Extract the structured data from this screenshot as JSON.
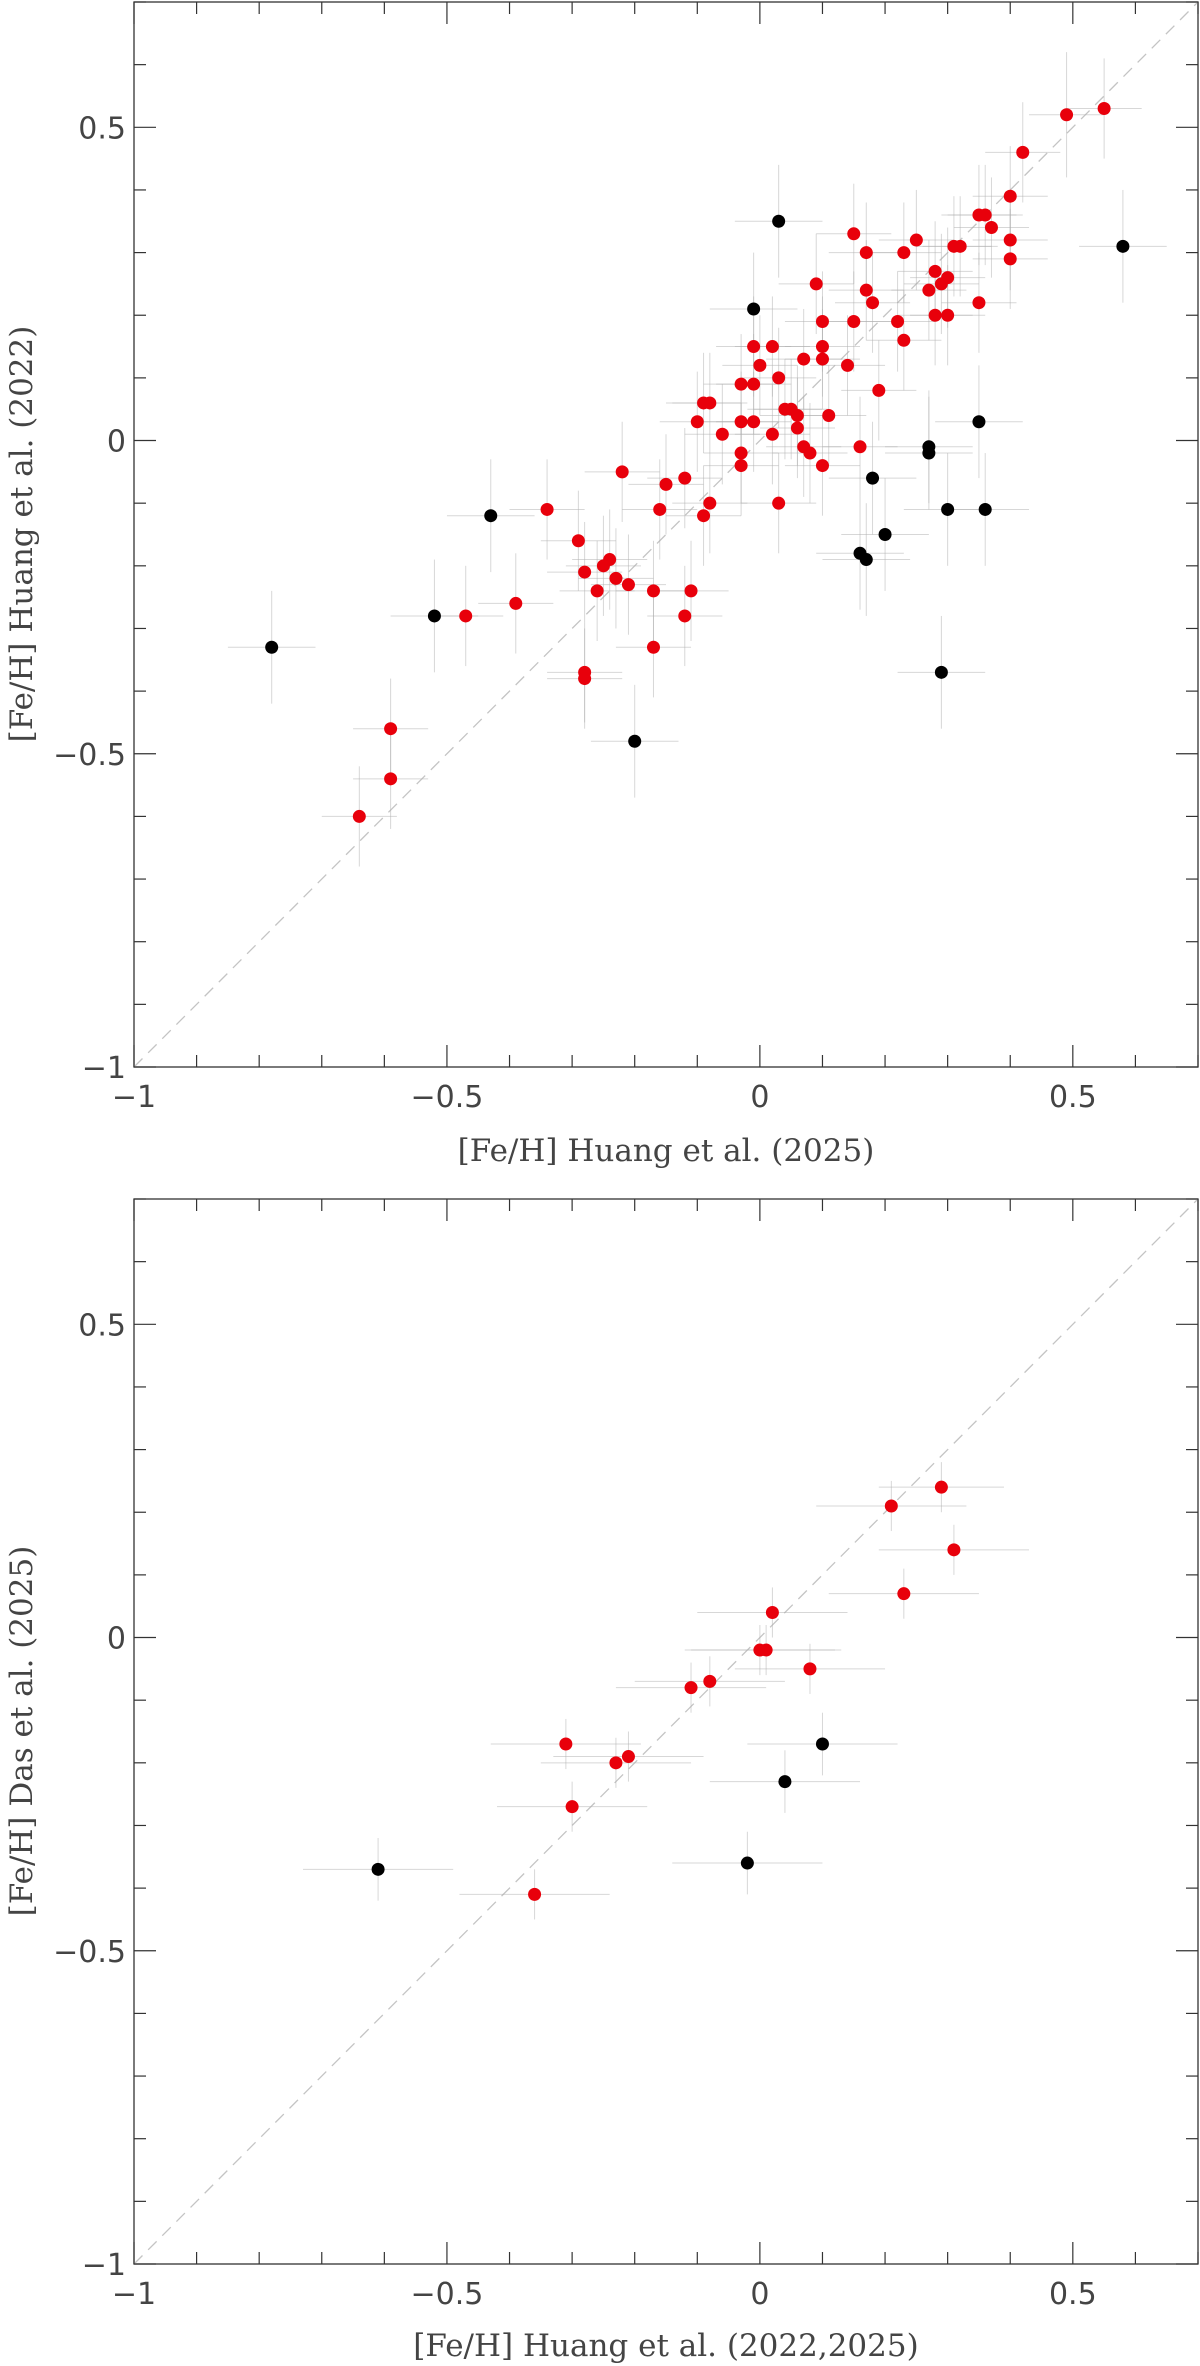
{
  "chart_data": [
    {
      "type": "scatter",
      "xlabel": "[Fe/H] Huang et al. (2025)",
      "ylabel": "[Fe/H] Huang et al. (2022)",
      "xlim": [
        -1,
        0.7
      ],
      "ylim": [
        -1,
        0.7
      ],
      "xticks": [
        -1,
        -0.5,
        0,
        0.5
      ],
      "xtick_labels": [
        "−1",
        "−0.5",
        "0",
        "0.5"
      ],
      "yticks": [
        -1,
        -0.5,
        0,
        0.5
      ],
      "ytick_labels": [
        "−1",
        "−0.5",
        "0",
        "0.5"
      ],
      "identity_line": true,
      "grid": false,
      "series": [
        {
          "color": "#e8000b",
          "points": [
            {
              "x": 0.55,
              "y": 0.53,
              "xerr": 0.06,
              "yerr": 0.08
            },
            {
              "x": 0.49,
              "y": 0.52,
              "xerr": 0.06,
              "yerr": 0.1
            },
            {
              "x": 0.42,
              "y": 0.46,
              "xerr": 0.06,
              "yerr": 0.08
            },
            {
              "x": 0.4,
              "y": 0.39,
              "xerr": 0.06,
              "yerr": 0.08
            },
            {
              "x": 0.36,
              "y": 0.36,
              "xerr": 0.06,
              "yerr": 0.08
            },
            {
              "x": 0.35,
              "y": 0.36,
              "xerr": 0.06,
              "yerr": 0.08
            },
            {
              "x": 0.37,
              "y": 0.34,
              "xerr": 0.06,
              "yerr": 0.08
            },
            {
              "x": 0.4,
              "y": 0.32,
              "xerr": 0.06,
              "yerr": 0.08
            },
            {
              "x": 0.4,
              "y": 0.29,
              "xerr": 0.06,
              "yerr": 0.08
            },
            {
              "x": 0.35,
              "y": 0.22,
              "xerr": 0.06,
              "yerr": 0.08
            },
            {
              "x": 0.32,
              "y": 0.31,
              "xerr": 0.06,
              "yerr": 0.08
            },
            {
              "x": 0.31,
              "y": 0.31,
              "xerr": 0.06,
              "yerr": 0.08
            },
            {
              "x": 0.3,
              "y": 0.26,
              "xerr": 0.06,
              "yerr": 0.08
            },
            {
              "x": 0.29,
              "y": 0.25,
              "xerr": 0.06,
              "yerr": 0.08
            },
            {
              "x": 0.28,
              "y": 0.27,
              "xerr": 0.06,
              "yerr": 0.08
            },
            {
              "x": 0.27,
              "y": 0.24,
              "xerr": 0.06,
              "yerr": 0.08
            },
            {
              "x": 0.25,
              "y": 0.32,
              "xerr": 0.06,
              "yerr": 0.08
            },
            {
              "x": 0.23,
              "y": 0.3,
              "xerr": 0.06,
              "yerr": 0.08
            },
            {
              "x": 0.3,
              "y": 0.2,
              "xerr": 0.06,
              "yerr": 0.08
            },
            {
              "x": 0.28,
              "y": 0.2,
              "xerr": 0.06,
              "yerr": 0.08
            },
            {
              "x": 0.22,
              "y": 0.19,
              "xerr": 0.06,
              "yerr": 0.08
            },
            {
              "x": 0.23,
              "y": 0.16,
              "xerr": 0.06,
              "yerr": 0.08
            },
            {
              "x": 0.15,
              "y": 0.33,
              "xerr": 0.06,
              "yerr": 0.08
            },
            {
              "x": 0.17,
              "y": 0.3,
              "xerr": 0.06,
              "yerr": 0.08
            },
            {
              "x": 0.17,
              "y": 0.24,
              "xerr": 0.06,
              "yerr": 0.08
            },
            {
              "x": 0.18,
              "y": 0.22,
              "xerr": 0.06,
              "yerr": 0.08
            },
            {
              "x": 0.09,
              "y": 0.25,
              "xerr": 0.06,
              "yerr": 0.08
            },
            {
              "x": 0.15,
              "y": 0.19,
              "xerr": 0.06,
              "yerr": 0.08
            },
            {
              "x": 0.1,
              "y": 0.19,
              "xerr": 0.06,
              "yerr": 0.08
            },
            {
              "x": 0.1,
              "y": 0.15,
              "xerr": 0.06,
              "yerr": 0.08
            },
            {
              "x": 0.1,
              "y": 0.13,
              "xerr": 0.06,
              "yerr": 0.08
            },
            {
              "x": 0.14,
              "y": 0.12,
              "xerr": 0.06,
              "yerr": 0.08
            },
            {
              "x": 0.07,
              "y": 0.13,
              "xerr": 0.06,
              "yerr": 0.08
            },
            {
              "x": 0.02,
              "y": 0.15,
              "xerr": 0.06,
              "yerr": 0.08
            },
            {
              "x": -0.01,
              "y": 0.15,
              "xerr": 0.06,
              "yerr": 0.08
            },
            {
              "x": 0.0,
              "y": 0.12,
              "xerr": 0.06,
              "yerr": 0.08
            },
            {
              "x": 0.03,
              "y": 0.1,
              "xerr": 0.06,
              "yerr": 0.08
            },
            {
              "x": -0.01,
              "y": 0.09,
              "xerr": 0.06,
              "yerr": 0.08
            },
            {
              "x": -0.03,
              "y": 0.09,
              "xerr": 0.06,
              "yerr": 0.08
            },
            {
              "x": 0.19,
              "y": 0.08,
              "xerr": 0.06,
              "yerr": 0.08
            },
            {
              "x": -0.08,
              "y": 0.06,
              "xerr": 0.06,
              "yerr": 0.08
            },
            {
              "x": -0.09,
              "y": 0.06,
              "xerr": 0.06,
              "yerr": 0.08
            },
            {
              "x": 0.05,
              "y": 0.05,
              "xerr": 0.06,
              "yerr": 0.08
            },
            {
              "x": 0.04,
              "y": 0.05,
              "xerr": 0.06,
              "yerr": 0.08
            },
            {
              "x": 0.06,
              "y": 0.04,
              "xerr": 0.06,
              "yerr": 0.08
            },
            {
              "x": 0.11,
              "y": 0.04,
              "xerr": 0.06,
              "yerr": 0.08
            },
            {
              "x": -0.03,
              "y": 0.03,
              "xerr": 0.06,
              "yerr": 0.08
            },
            {
              "x": -0.1,
              "y": 0.03,
              "xerr": 0.06,
              "yerr": 0.08
            },
            {
              "x": -0.01,
              "y": 0.03,
              "xerr": 0.06,
              "yerr": 0.08
            },
            {
              "x": 0.06,
              "y": 0.02,
              "xerr": 0.06,
              "yerr": 0.08
            },
            {
              "x": 0.02,
              "y": 0.01,
              "xerr": 0.06,
              "yerr": 0.08
            },
            {
              "x": -0.06,
              "y": 0.01,
              "xerr": 0.06,
              "yerr": 0.08
            },
            {
              "x": 0.07,
              "y": -0.01,
              "xerr": 0.06,
              "yerr": 0.08
            },
            {
              "x": 0.16,
              "y": -0.01,
              "xerr": 0.06,
              "yerr": 0.08
            },
            {
              "x": -0.03,
              "y": -0.02,
              "xerr": 0.06,
              "yerr": 0.08
            },
            {
              "x": 0.08,
              "y": -0.02,
              "xerr": 0.06,
              "yerr": 0.08
            },
            {
              "x": -0.03,
              "y": -0.04,
              "xerr": 0.06,
              "yerr": 0.08
            },
            {
              "x": 0.1,
              "y": -0.04,
              "xerr": 0.06,
              "yerr": 0.08
            },
            {
              "x": -0.22,
              "y": -0.05,
              "xerr": 0.06,
              "yerr": 0.08
            },
            {
              "x": -0.12,
              "y": -0.06,
              "xerr": 0.06,
              "yerr": 0.08
            },
            {
              "x": -0.15,
              "y": -0.07,
              "xerr": 0.06,
              "yerr": 0.08
            },
            {
              "x": 0.03,
              "y": -0.1,
              "xerr": 0.06,
              "yerr": 0.08
            },
            {
              "x": -0.08,
              "y": -0.1,
              "xerr": 0.06,
              "yerr": 0.08
            },
            {
              "x": -0.34,
              "y": -0.11,
              "xerr": 0.06,
              "yerr": 0.08
            },
            {
              "x": -0.16,
              "y": -0.11,
              "xerr": 0.06,
              "yerr": 0.08
            },
            {
              "x": -0.09,
              "y": -0.12,
              "xerr": 0.06,
              "yerr": 0.08
            },
            {
              "x": -0.29,
              "y": -0.16,
              "xerr": 0.06,
              "yerr": 0.08
            },
            {
              "x": -0.24,
              "y": -0.19,
              "xerr": 0.06,
              "yerr": 0.08
            },
            {
              "x": -0.25,
              "y": -0.2,
              "xerr": 0.06,
              "yerr": 0.08
            },
            {
              "x": -0.28,
              "y": -0.21,
              "xerr": 0.06,
              "yerr": 0.08
            },
            {
              "x": -0.23,
              "y": -0.22,
              "xerr": 0.06,
              "yerr": 0.08
            },
            {
              "x": -0.21,
              "y": -0.23,
              "xerr": 0.06,
              "yerr": 0.08
            },
            {
              "x": -0.26,
              "y": -0.24,
              "xerr": 0.06,
              "yerr": 0.08
            },
            {
              "x": -0.17,
              "y": -0.24,
              "xerr": 0.06,
              "yerr": 0.08
            },
            {
              "x": -0.11,
              "y": -0.24,
              "xerr": 0.06,
              "yerr": 0.08
            },
            {
              "x": -0.39,
              "y": -0.26,
              "xerr": 0.06,
              "yerr": 0.08
            },
            {
              "x": -0.12,
              "y": -0.28,
              "xerr": 0.06,
              "yerr": 0.08
            },
            {
              "x": -0.47,
              "y": -0.28,
              "xerr": 0.06,
              "yerr": 0.08
            },
            {
              "x": -0.17,
              "y": -0.33,
              "xerr": 0.06,
              "yerr": 0.08
            },
            {
              "x": -0.28,
              "y": -0.37,
              "xerr": 0.06,
              "yerr": 0.08
            },
            {
              "x": -0.28,
              "y": -0.38,
              "xerr": 0.06,
              "yerr": 0.08
            },
            {
              "x": -0.59,
              "y": -0.46,
              "xerr": 0.06,
              "yerr": 0.08
            },
            {
              "x": -0.59,
              "y": -0.54,
              "xerr": 0.06,
              "yerr": 0.08
            },
            {
              "x": -0.64,
              "y": -0.6,
              "xerr": 0.06,
              "yerr": 0.08
            }
          ]
        },
        {
          "color": "#000000",
          "points": [
            {
              "x": 0.58,
              "y": 0.31,
              "xerr": 0.07,
              "yerr": 0.09
            },
            {
              "x": 0.03,
              "y": 0.35,
              "xerr": 0.07,
              "yerr": 0.09
            },
            {
              "x": -0.01,
              "y": 0.21,
              "xerr": 0.07,
              "yerr": 0.09
            },
            {
              "x": 0.35,
              "y": 0.03,
              "xerr": 0.07,
              "yerr": 0.09
            },
            {
              "x": 0.27,
              "y": -0.01,
              "xerr": 0.07,
              "yerr": 0.09
            },
            {
              "x": 0.27,
              "y": -0.02,
              "xerr": 0.07,
              "yerr": 0.09
            },
            {
              "x": 0.18,
              "y": -0.06,
              "xerr": 0.07,
              "yerr": 0.09
            },
            {
              "x": 0.3,
              "y": -0.11,
              "xerr": 0.07,
              "yerr": 0.09
            },
            {
              "x": 0.36,
              "y": -0.11,
              "xerr": 0.07,
              "yerr": 0.09
            },
            {
              "x": -0.43,
              "y": -0.12,
              "xerr": 0.07,
              "yerr": 0.09
            },
            {
              "x": 0.2,
              "y": -0.15,
              "xerr": 0.07,
              "yerr": 0.09
            },
            {
              "x": 0.16,
              "y": -0.18,
              "xerr": 0.07,
              "yerr": 0.09
            },
            {
              "x": 0.17,
              "y": -0.19,
              "xerr": 0.07,
              "yerr": 0.09
            },
            {
              "x": -0.52,
              "y": -0.28,
              "xerr": 0.07,
              "yerr": 0.09
            },
            {
              "x": -0.78,
              "y": -0.33,
              "xerr": 0.07,
              "yerr": 0.09
            },
            {
              "x": 0.29,
              "y": -0.37,
              "xerr": 0.07,
              "yerr": 0.09
            },
            {
              "x": -0.2,
              "y": -0.48,
              "xerr": 0.07,
              "yerr": 0.09
            }
          ]
        }
      ]
    },
    {
      "type": "scatter",
      "xlabel": "[Fe/H] Huang et al. (2022,2025)",
      "ylabel": "[Fe/H] Das et al. (2025)",
      "xlim": [
        -1,
        0.7
      ],
      "ylim": [
        -1,
        0.7
      ],
      "xticks": [
        -1,
        -0.5,
        0,
        0.5
      ],
      "xtick_labels": [
        "−1",
        "−0.5",
        "0",
        "0.5"
      ],
      "yticks": [
        -1,
        -0.5,
        0,
        0.5
      ],
      "ytick_labels": [
        "−1",
        "−0.5",
        "0",
        "0.5"
      ],
      "identity_line": true,
      "grid": false,
      "series": [
        {
          "color": "#e8000b",
          "points": [
            {
              "x": 0.21,
              "y": 0.21,
              "xerr": 0.12,
              "yerr": 0.04
            },
            {
              "x": 0.29,
              "y": 0.24,
              "xerr": 0.1,
              "yerr": 0.04
            },
            {
              "x": 0.31,
              "y": 0.14,
              "xerr": 0.12,
              "yerr": 0.04
            },
            {
              "x": 0.23,
              "y": 0.07,
              "xerr": 0.12,
              "yerr": 0.04
            },
            {
              "x": 0.02,
              "y": 0.04,
              "xerr": 0.12,
              "yerr": 0.04
            },
            {
              "x": 0.0,
              "y": -0.02,
              "xerr": 0.12,
              "yerr": 0.04
            },
            {
              "x": 0.01,
              "y": -0.02,
              "xerr": 0.12,
              "yerr": 0.04
            },
            {
              "x": 0.08,
              "y": -0.05,
              "xerr": 0.12,
              "yerr": 0.04
            },
            {
              "x": -0.08,
              "y": -0.07,
              "xerr": 0.12,
              "yerr": 0.04
            },
            {
              "x": -0.11,
              "y": -0.08,
              "xerr": 0.12,
              "yerr": 0.04
            },
            {
              "x": -0.31,
              "y": -0.17,
              "xerr": 0.12,
              "yerr": 0.04
            },
            {
              "x": -0.23,
              "y": -0.2,
              "xerr": 0.12,
              "yerr": 0.04
            },
            {
              "x": -0.21,
              "y": -0.19,
              "xerr": 0.12,
              "yerr": 0.04
            },
            {
              "x": -0.3,
              "y": -0.27,
              "xerr": 0.12,
              "yerr": 0.04
            },
            {
              "x": -0.36,
              "y": -0.41,
              "xerr": 0.12,
              "yerr": 0.04
            }
          ]
        },
        {
          "color": "#000000",
          "points": [
            {
              "x": 0.1,
              "y": -0.17,
              "xerr": 0.12,
              "yerr": 0.05
            },
            {
              "x": 0.04,
              "y": -0.23,
              "xerr": 0.12,
              "yerr": 0.05
            },
            {
              "x": -0.02,
              "y": -0.36,
              "xerr": 0.12,
              "yerr": 0.05
            },
            {
              "x": -0.61,
              "y": -0.37,
              "xerr": 0.12,
              "yerr": 0.05
            }
          ]
        }
      ]
    }
  ]
}
